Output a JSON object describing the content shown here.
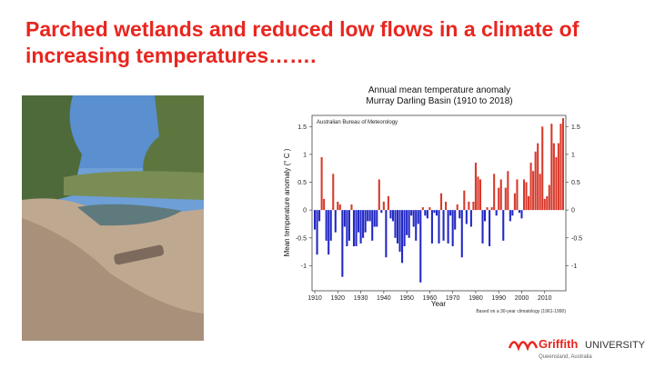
{
  "slide_title": "Parched wetlands and reduced low flows in a climate of increasing temperatures…….",
  "logo": {
    "name": "Griffith",
    "suffix": "UNIVERSITY",
    "place": "Queensland, Australia"
  },
  "chart_data": {
    "type": "bar",
    "title": "Annual mean temperature anomaly",
    "subtitle": "Murray Darling Basin (1910 to 2018)",
    "source": "Australian Bureau of Meteorology",
    "note": "Based on a 30-year climatology (1961-1990)",
    "x_label": "Year",
    "y_label": "Mean temperature anomaly (° C )",
    "colors": {
      "positive": "#d8392b",
      "negative": "#2228c4"
    },
    "x": [
      1910,
      1911,
      1912,
      1913,
      1914,
      1915,
      1916,
      1917,
      1918,
      1919,
      1920,
      1921,
      1922,
      1923,
      1924,
      1925,
      1926,
      1927,
      1928,
      1929,
      1930,
      1931,
      1932,
      1933,
      1934,
      1935,
      1936,
      1937,
      1938,
      1939,
      1940,
      1941,
      1942,
      1943,
      1944,
      1945,
      1946,
      1947,
      1948,
      1949,
      1950,
      1951,
      1952,
      1953,
      1954,
      1955,
      1956,
      1957,
      1958,
      1959,
      1960,
      1961,
      1962,
      1963,
      1964,
      1965,
      1966,
      1967,
      1968,
      1969,
      1970,
      1971,
      1972,
      1973,
      1974,
      1975,
      1976,
      1977,
      1978,
      1979,
      1980,
      1981,
      1982,
      1983,
      1984,
      1985,
      1986,
      1987,
      1988,
      1989,
      1990,
      1991,
      1992,
      1993,
      1994,
      1995,
      1996,
      1997,
      1998,
      1999,
      2000,
      2001,
      2002,
      2003,
      2004,
      2005,
      2006,
      2007,
      2008,
      2009,
      2010,
      2011,
      2012,
      2013,
      2014,
      2015,
      2016,
      2017,
      2018
    ],
    "values": [
      -0.35,
      -0.8,
      -0.2,
      0.95,
      0.2,
      -0.55,
      -0.8,
      -0.55,
      0.65,
      -0.4,
      0.15,
      0.1,
      -1.2,
      -0.3,
      -0.65,
      -0.55,
      0.1,
      -0.65,
      -0.65,
      -0.4,
      -0.6,
      -0.5,
      -0.4,
      -0.2,
      -0.2,
      -0.55,
      -0.3,
      -0.3,
      0.55,
      -0.05,
      0.15,
      -0.85,
      0.25,
      -0.15,
      -0.2,
      -0.5,
      -0.6,
      -0.75,
      -0.95,
      -0.65,
      -0.45,
      -0.5,
      -0.1,
      -0.3,
      -0.55,
      -0.25,
      -1.3,
      0.05,
      -0.1,
      -0.15,
      0.05,
      -0.6,
      -0.05,
      -0.1,
      -0.6,
      0.3,
      -0.55,
      0.15,
      -0.6,
      -0.1,
      -0.65,
      -0.35,
      0.1,
      -0.15,
      -0.85,
      0.35,
      -0.25,
      0.15,
      -0.3,
      0.15,
      0.85,
      0.6,
      0.55,
      -0.6,
      -0.2,
      0.05,
      -0.65,
      0.05,
      0.65,
      -0.1,
      0.4,
      0.55,
      -0.55,
      0.4,
      0.7,
      -0.2,
      -0.1,
      0.3,
      0.55,
      -0.05,
      -0.15,
      0.55,
      0.5,
      0.25,
      0.85,
      0.7,
      1.05,
      1.2,
      0.65,
      1.5,
      0.2,
      0.25,
      0.45,
      1.55,
      1.2,
      0.95,
      1.2,
      1.55,
      1.65
    ],
    "xlim": [
      1908.8,
      2019.2
    ],
    "xticks": [
      1910,
      1920,
      1930,
      1940,
      1950,
      1960,
      1970,
      1980,
      1990,
      2000,
      2010
    ],
    "ylim": [
      -1.45,
      1.7
    ],
    "yticks": [
      -1,
      -0.5,
      0,
      0.5,
      1,
      1.5
    ]
  }
}
